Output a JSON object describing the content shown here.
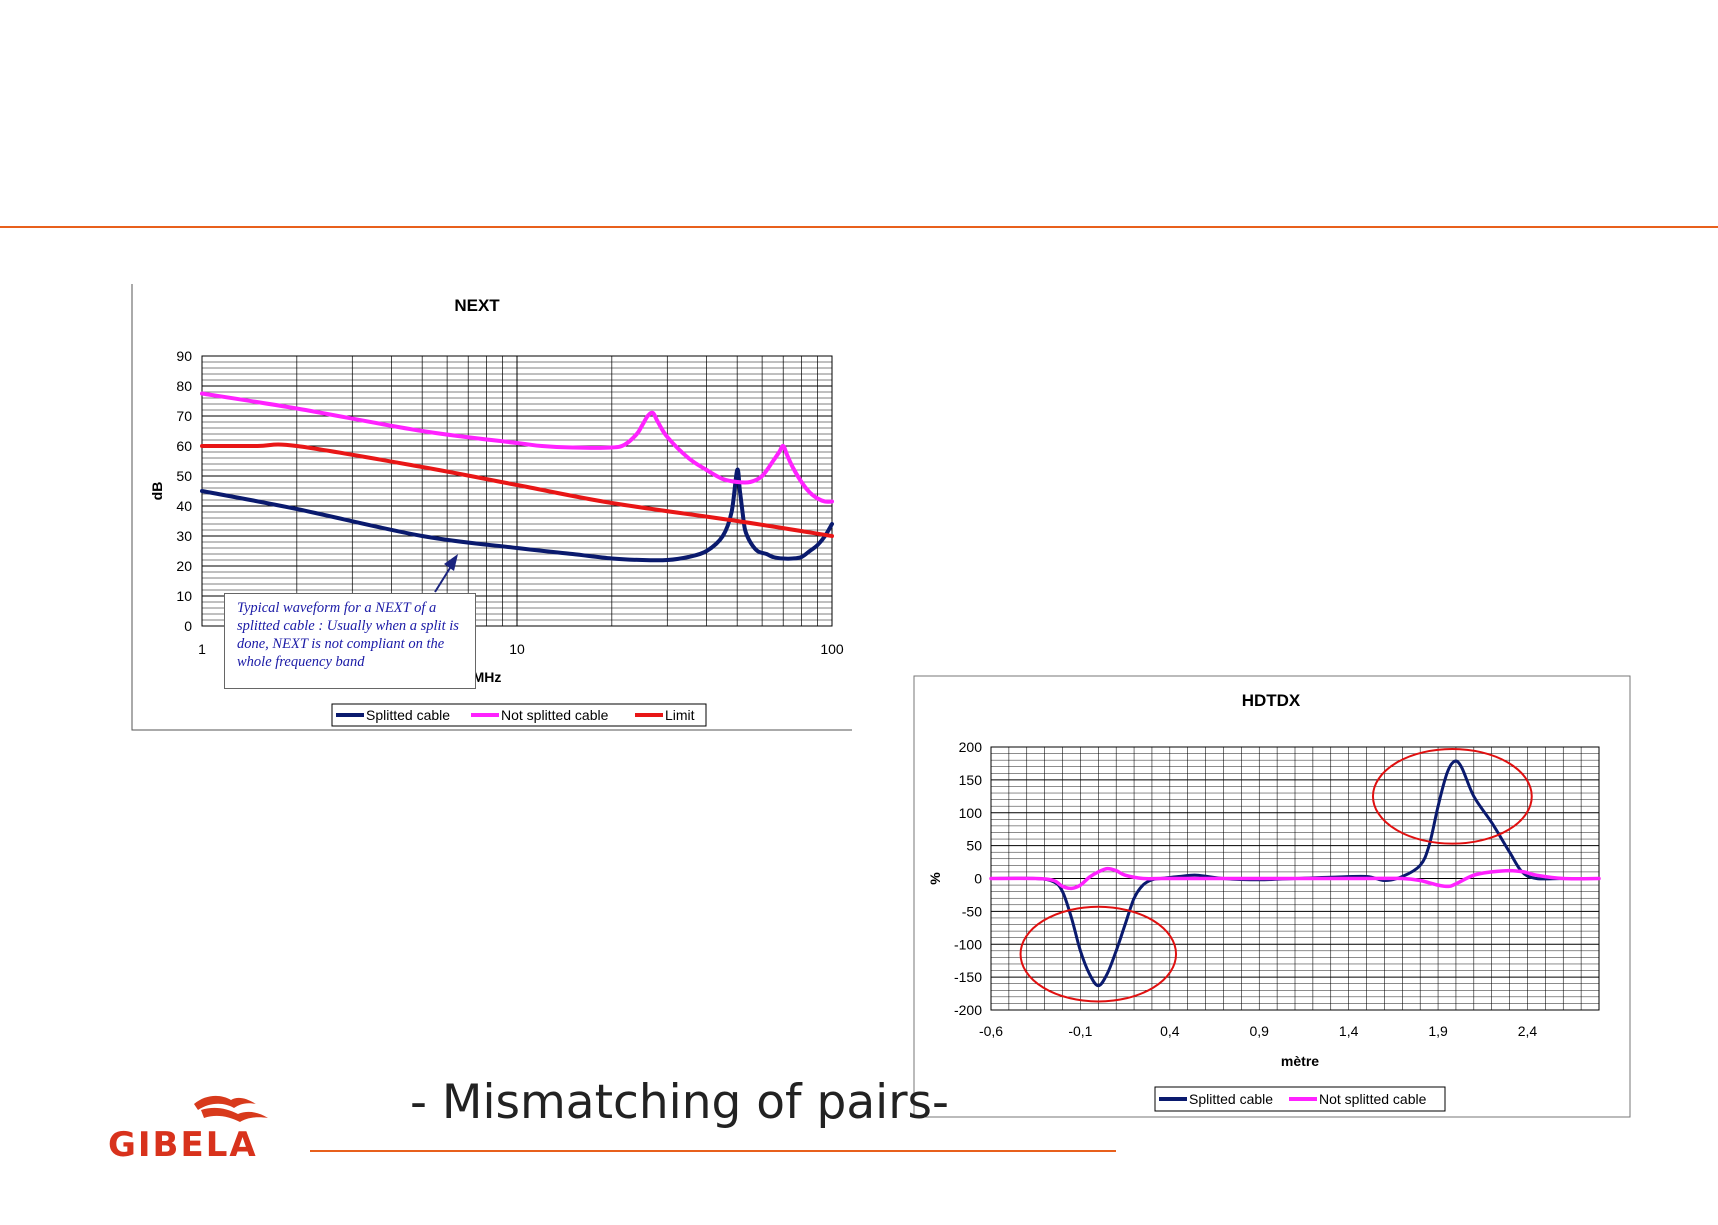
{
  "slide": {
    "title": "- Mismatching of pairs-",
    "logo_text": "GIBELA",
    "accent_color": "#e8601c"
  },
  "colors": {
    "splitted": "#0a1a6e",
    "not_splitted": "#ff22ff",
    "limit": "#e81616"
  },
  "chart_data": [
    {
      "type": "line",
      "title": "NEXT",
      "xlabel": "MHz",
      "ylabel": "dB",
      "xscale": "log",
      "xlim": [
        1,
        100
      ],
      "ylim": [
        0,
        90
      ],
      "xticks": [
        1,
        10,
        100
      ],
      "xtick_labels": [
        "1",
        "10",
        "100"
      ],
      "yticks": [
        0,
        10,
        20,
        30,
        40,
        50,
        60,
        70,
        80,
        90
      ],
      "ytick_labels": [
        "0",
        "10",
        "20",
        "30",
        "40",
        "50",
        "60",
        "70",
        "80",
        "90"
      ],
      "grid": true,
      "legend_position": "bottom",
      "annotation": "Typical waveform for a NEXT of a splitted cable :  Usually when a split is done, NEXT is not compliant on the whole frequency band",
      "series": [
        {
          "name": "Splitted cable",
          "color": "#0a1a6e",
          "x": [
            1,
            2,
            5,
            10,
            15,
            20,
            25,
            30,
            35,
            40,
            45,
            48,
            50,
            51,
            52,
            53,
            55,
            58,
            62,
            65,
            70,
            75,
            80,
            85,
            90,
            95,
            100
          ],
          "y": [
            45,
            39,
            30,
            26,
            24,
            22.5,
            22,
            22,
            23,
            25,
            30,
            38,
            52,
            45,
            38,
            32,
            28,
            25,
            24,
            23,
            22.5,
            22.5,
            23,
            25,
            27,
            30,
            34
          ]
        },
        {
          "name": "Not splitted cable",
          "color": "#ff22ff",
          "x": [
            1,
            2,
            5,
            10,
            12,
            15,
            20,
            22,
            24,
            25,
            26,
            27,
            28,
            30,
            35,
            40,
            45,
            50,
            55,
            60,
            65,
            68,
            70,
            72,
            75,
            80,
            85,
            90,
            95,
            100
          ],
          "y": [
            77.5,
            72.5,
            65,
            61,
            60,
            59.5,
            59.5,
            60.5,
            64,
            67,
            70,
            71,
            68,
            63,
            56,
            52,
            49,
            48,
            48,
            50,
            55,
            58,
            60,
            57,
            53,
            48,
            44.5,
            42.5,
            41.5,
            41.5
          ]
        },
        {
          "name": "Limit",
          "color": "#e81616",
          "x": [
            1,
            1.5,
            2,
            5,
            10,
            20,
            50,
            100
          ],
          "y": [
            60,
            60,
            60,
            53,
            47,
            41,
            35,
            30
          ]
        }
      ]
    },
    {
      "type": "line",
      "title": "HDTDX",
      "xlabel": "mètre",
      "ylabel": "%",
      "xlim": [
        -0.6,
        2.8
      ],
      "ylim": [
        -200,
        200
      ],
      "xticks": [
        -0.6,
        -0.1,
        0.4,
        0.9,
        1.4,
        1.9,
        2.4
      ],
      "xtick_labels": [
        "-0,6",
        "-0,1",
        "0,4",
        "0,9",
        "1,4",
        "1,9",
        "2,4"
      ],
      "yticks": [
        -200,
        -150,
        -100,
        -50,
        0,
        50,
        100,
        150,
        200
      ],
      "ytick_labels": [
        "-200",
        "-150",
        "-100",
        "-50",
        "0",
        "50",
        "100",
        "150",
        "200"
      ],
      "grid": true,
      "legend_position": "bottom",
      "highlights": [
        {
          "cx": 0.0,
          "cy": -115,
          "rx": 0.47,
          "ry": 72
        },
        {
          "cx": 1.98,
          "cy": 125,
          "rx": 0.48,
          "ry": 72
        }
      ],
      "series": [
        {
          "name": "Splitted cable",
          "color": "#0a1a6e",
          "x": [
            -0.6,
            -0.35,
            -0.25,
            -0.2,
            -0.15,
            -0.1,
            -0.05,
            0.0,
            0.05,
            0.1,
            0.15,
            0.2,
            0.25,
            0.3,
            0.35,
            0.45,
            0.55,
            0.7,
            0.9,
            1.1,
            1.3,
            1.5,
            1.6,
            1.7,
            1.8,
            1.85,
            1.9,
            1.95,
            1.99,
            2.03,
            2.1,
            2.2,
            2.3,
            2.37,
            2.45,
            2.6,
            2.8
          ],
          "y": [
            0,
            0,
            -5,
            -20,
            -60,
            -110,
            -145,
            -163,
            -145,
            -110,
            -70,
            -30,
            -10,
            -2,
            0,
            3,
            5,
            0,
            -2,
            0,
            2,
            3,
            -3,
            3,
            20,
            50,
            110,
            160,
            178,
            170,
            125,
            85,
            40,
            10,
            0,
            0,
            0
          ]
        },
        {
          "name": "Not splitted cable",
          "color": "#ff22ff",
          "x": [
            -0.6,
            -0.35,
            -0.25,
            -0.2,
            -0.15,
            -0.1,
            -0.05,
            0.0,
            0.05,
            0.1,
            0.15,
            0.25,
            0.35,
            0.5,
            0.7,
            1.0,
            1.3,
            1.5,
            1.7,
            1.8,
            1.9,
            1.96,
            2.0,
            2.1,
            2.2,
            2.3,
            2.38,
            2.45,
            2.6,
            2.8
          ],
          "y": [
            0,
            0,
            -3,
            -12,
            -15,
            -10,
            2,
            10,
            15,
            12,
            5,
            0,
            0,
            0,
            0,
            0,
            0,
            0,
            0,
            -3,
            -10,
            -12,
            -8,
            5,
            10,
            12,
            10,
            5,
            0,
            0
          ]
        }
      ]
    }
  ]
}
